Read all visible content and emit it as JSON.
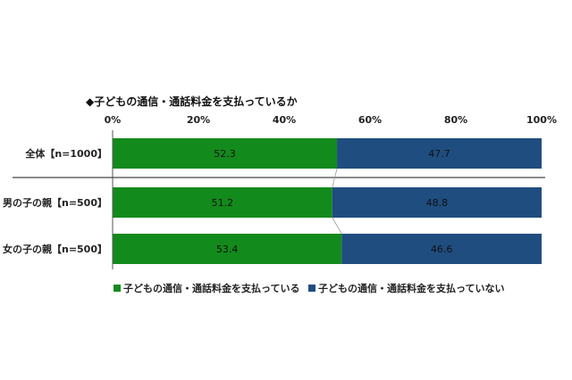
{
  "chart_data": {
    "type": "bar",
    "orientation": "horizontal",
    "stacked": true,
    "title": "◆子どもの通信・通話料金を支払っているか",
    "categories": [
      "全体【n=1000】",
      "男の子の親【n=500】",
      "女の子の親【n=500】"
    ],
    "series": [
      {
        "name": "子どもの通信・通話料金を支払っている",
        "values": [
          52.3,
          51.2,
          53.4
        ],
        "color": "#138a1c"
      },
      {
        "name": "子どもの通信・通話料金を支払っていない",
        "values": [
          47.7,
          48.8,
          46.6
        ],
        "color": "#1f4d7f"
      }
    ],
    "xlim": [
      0,
      100
    ],
    "xticks": [
      "0%",
      "20%",
      "40%",
      "60%",
      "80%",
      "100%"
    ],
    "legend_position": "bottom",
    "grid": false
  }
}
